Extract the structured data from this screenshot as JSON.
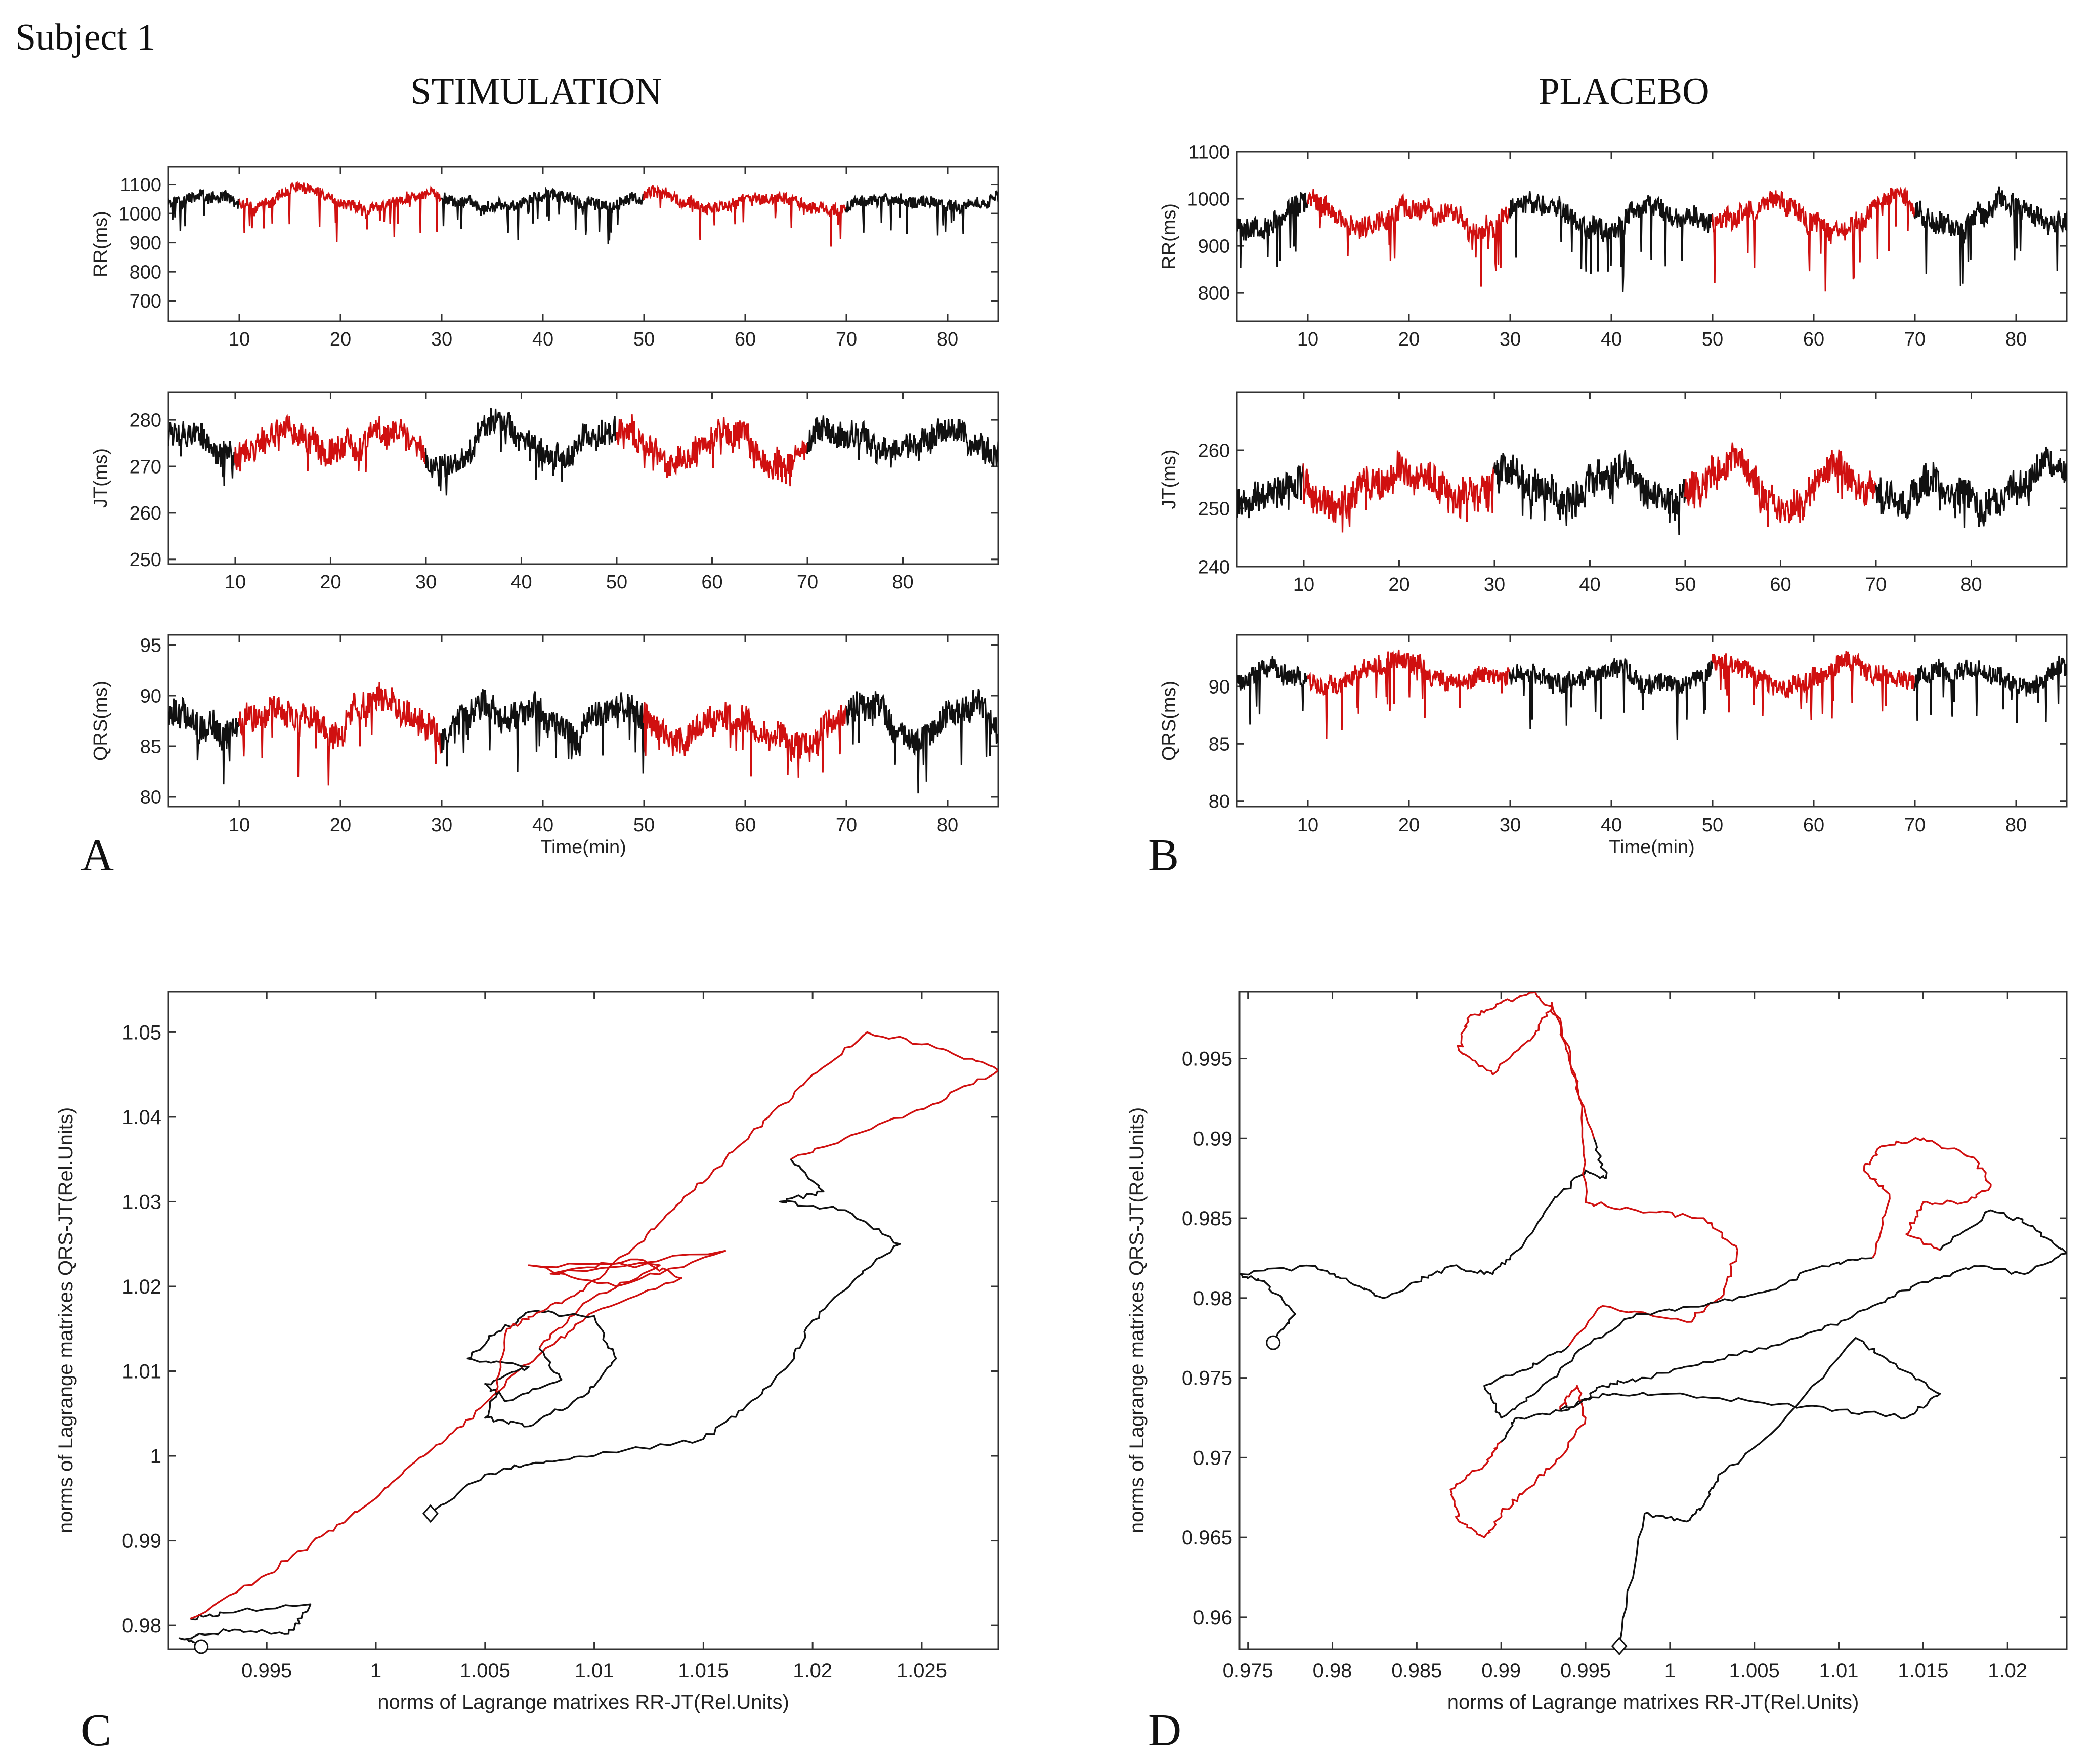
{
  "figure": {
    "subject": "Subject 1",
    "stimulation_title": "STIMULATION",
    "placebo_title": "PLACEBO",
    "panel_letters": [
      "A",
      "B",
      "C",
      "D"
    ]
  },
  "colors": {
    "red": "#d01010",
    "black": "#111111",
    "axis": "#333333",
    "text": "#222222"
  },
  "chart_data": [
    {
      "id": "A-RR",
      "panel": "A",
      "type": "line",
      "ylabel": "RR(ms)",
      "xlabel": "",
      "xlim": [
        3,
        85
      ],
      "ylim": [
        630,
        1160
      ],
      "xticks": [
        10,
        20,
        30,
        40,
        50,
        60,
        70,
        80
      ],
      "yticks": [
        700,
        800,
        900,
        1000,
        1100
      ],
      "series": {
        "base": 1040,
        "amp": 35,
        "dips": 110,
        "lo": 840,
        "hi": 1160,
        "seed": 11
      },
      "red_segments": [
        [
          10,
          30
        ],
        [
          50,
          70
        ]
      ]
    },
    {
      "id": "A-JT",
      "panel": "A",
      "type": "line",
      "ylabel": "JT(ms)",
      "xlabel": "",
      "xlim": [
        3,
        90
      ],
      "ylim": [
        249,
        286
      ],
      "xticks": [
        10,
        20,
        30,
        40,
        50,
        60,
        70,
        80
      ],
      "yticks": [
        250,
        260,
        270,
        280
      ],
      "series": {
        "base": 275,
        "amp": 5,
        "dips": 4,
        "lo": 263,
        "hi": 286,
        "seed": 12
      },
      "red_segments": [
        [
          10,
          30
        ],
        [
          50,
          70
        ]
      ]
    },
    {
      "id": "A-QRS",
      "panel": "A",
      "type": "line",
      "ylabel": "QRS(ms)",
      "xlabel": "Time(min)",
      "xlim": [
        3,
        85
      ],
      "ylim": [
        79,
        96
      ],
      "xticks": [
        10,
        20,
        30,
        40,
        50,
        60,
        70,
        80
      ],
      "yticks": [
        80,
        85,
        90,
        95
      ],
      "series": {
        "base": 87.5,
        "amp": 2.5,
        "dips": 4,
        "lo": 80,
        "hi": 94,
        "seed": 13
      },
      "red_segments": [
        [
          10,
          30
        ],
        [
          50,
          70
        ]
      ]
    },
    {
      "id": "B-RR",
      "panel": "B",
      "type": "line",
      "ylabel": "RR(ms)",
      "xlabel": "",
      "xlim": [
        3,
        85
      ],
      "ylim": [
        740,
        1100
      ],
      "xticks": [
        10,
        20,
        30,
        40,
        50,
        60,
        70,
        80
      ],
      "yticks": [
        800,
        900,
        1000,
        1100
      ],
      "series": {
        "base": 960,
        "amp": 40,
        "dips": 110,
        "lo": 750,
        "hi": 1100,
        "seed": 21
      },
      "red_segments": [
        [
          10,
          30
        ],
        [
          50,
          70
        ]
      ]
    },
    {
      "id": "B-JT",
      "panel": "B",
      "type": "line",
      "ylabel": "JT(ms)",
      "xlabel": "",
      "xlim": [
        3,
        90
      ],
      "ylim": [
        240,
        270
      ],
      "xticks": [
        10,
        20,
        30,
        40,
        50,
        60,
        70,
        80
      ],
      "yticks": [
        240,
        250,
        260
      ],
      "series": {
        "base": 254,
        "amp": 5,
        "dips": 4,
        "lo": 241,
        "hi": 269,
        "seed": 22
      },
      "red_segments": [
        [
          10,
          30
        ],
        [
          50,
          70
        ]
      ]
    },
    {
      "id": "B-QRS",
      "panel": "B",
      "type": "line",
      "ylabel": "QRS(ms)",
      "xlabel": "Time(min)",
      "xlim": [
        3,
        85
      ],
      "ylim": [
        79.5,
        94.5
      ],
      "xticks": [
        10,
        20,
        30,
        40,
        50,
        60,
        70,
        80
      ],
      "yticks": [
        80,
        85,
        90
      ],
      "series": {
        "base": 91,
        "amp": 1.5,
        "dips": 4,
        "lo": 81,
        "hi": 94,
        "seed": 23
      },
      "red_segments": [
        [
          10,
          30
        ],
        [
          50,
          70
        ]
      ]
    },
    {
      "id": "C",
      "panel": "C",
      "type": "line",
      "xlabel": "norms of  Lagrange matrixes RR-JT(Rel.Units)",
      "ylabel": "norms of Lagrange matrixes QRS-JT(Rel.Units)",
      "xlim": [
        0.9905,
        1.0285
      ],
      "ylim": [
        0.9772,
        1.0548
      ],
      "xticks": [
        0.995,
        1,
        1.005,
        1.01,
        1.015,
        1.02,
        1.025
      ],
      "yticks": [
        0.98,
        0.99,
        1,
        1.01,
        1.02,
        1.03,
        1.04,
        1.05
      ],
      "xtick_labels": [
        "0.995",
        "1",
        "1.005",
        "1.01",
        "1.015",
        "1.02",
        "1.025"
      ],
      "ytick_labels": [
        "0.98",
        "0.99",
        "1",
        "1.01",
        "1.02",
        "1.03",
        "1.04",
        "1.05"
      ],
      "start_marker": "circle",
      "end_marker": "diamond",
      "trajectory": [
        {
          "color": "black",
          "points": [
            [
              0.992,
              0.9775
            ],
            [
              0.991,
              0.9785
            ],
            [
              0.9935,
              0.9795
            ],
            [
              0.996,
              0.979
            ],
            [
              0.997,
              0.9825
            ],
            [
              0.993,
              0.9815
            ],
            [
              0.9915,
              0.9808
            ]
          ]
        },
        {
          "color": "red",
          "points": [
            [
              0.9915,
              0.9808
            ],
            [
              0.995,
              0.986
            ],
            [
              0.9975,
              0.9905
            ],
            [
              1.0,
              0.995
            ],
            [
              1.002,
              0.9998
            ],
            [
              1.004,
              1.0035
            ],
            [
              1.006,
              1.009
            ],
            [
              1.008,
              1.013
            ],
            [
              1.01,
              1.017
            ],
            [
              1.014,
              1.021
            ],
            [
              1.012,
              1.0232
            ],
            [
              1.008,
              1.0215
            ],
            [
              1.016,
              1.0242
            ],
            [
              1.011,
              1.02
            ],
            [
              1.007,
              1.0225
            ],
            [
              1.013,
              1.0225
            ],
            [
              1.0095,
              1.018
            ],
            [
              1.0075,
              1.0128
            ]
          ]
        },
        {
          "color": "black",
          "points": [
            [
              1.0075,
              1.0128
            ],
            [
              1.0085,
              1.009
            ],
            [
              1.006,
              1.0065
            ],
            [
              1.005,
              1.0085
            ],
            [
              1.007,
              1.0105
            ],
            [
              1.0042,
              1.0115
            ],
            [
              1.0055,
              1.0145
            ],
            [
              1.007,
              1.017
            ],
            [
              1.01,
              1.0165
            ],
            [
              1.011,
              1.0115
            ],
            [
              1.0095,
              1.007
            ],
            [
              1.007,
              1.0035
            ],
            [
              1.005,
              1.0045
            ],
            [
              1.0055,
              1.0075
            ]
          ]
        },
        {
          "color": "red",
          "points": [
            [
              1.0055,
              1.0075
            ],
            [
              1.006,
              1.015
            ],
            [
              1.0075,
              1.017
            ],
            [
              1.0095,
              1.0195
            ],
            [
              1.012,
              1.025
            ],
            [
              1.014,
              1.03
            ],
            [
              1.016,
              1.035
            ],
            [
              1.018,
              1.04
            ],
            [
              1.02,
              1.045
            ],
            [
              1.0225,
              1.05
            ],
            [
              1.026,
              1.048
            ],
            [
              1.0285,
              1.0455
            ],
            [
              1.0255,
              1.0415
            ],
            [
              1.022,
              1.038
            ],
            [
              1.019,
              1.035
            ]
          ]
        },
        {
          "color": "black",
          "points": [
            [
              1.019,
              1.035
            ],
            [
              1.0205,
              1.0312
            ],
            [
              1.0185,
              1.03
            ],
            [
              1.0215,
              1.029
            ],
            [
              1.024,
              1.025
            ],
            [
              1.022,
              1.021
            ],
            [
              1.02,
              1.016
            ],
            [
              1.019,
              1.011
            ],
            [
              1.017,
              1.006
            ],
            [
              1.015,
              1.002
            ],
            [
              1.01,
              1.0
            ],
            [
              1.007,
              0.999
            ],
            [
              1.005,
              0.9978
            ],
            [
              1.0025,
              0.9932
            ]
          ]
        }
      ]
    },
    {
      "id": "D",
      "panel": "D",
      "type": "line",
      "xlabel": "norms of  Lagrange matrixes RR-JT(Rel.Units)",
      "ylabel": "norms of Lagrange matrixes QRS-JT(Rel.Units)",
      "xlim": [
        0.9745,
        1.0235
      ],
      "ylim": [
        0.958,
        0.9992
      ],
      "xticks": [
        0.975,
        0.98,
        0.985,
        0.99,
        0.995,
        1,
        1.005,
        1.01,
        1.015,
        1.02
      ],
      "yticks": [
        0.96,
        0.965,
        0.97,
        0.975,
        0.98,
        0.985,
        0.99,
        0.995
      ],
      "xtick_labels": [
        "0.975",
        "0.98",
        "0.985",
        "0.99",
        "0.995",
        "1",
        "1.005",
        "1.01",
        "1.015",
        "1.02"
      ],
      "ytick_labels": [
        "0.96",
        "0.965",
        "0.97",
        "0.975",
        "0.98",
        "0.985",
        "0.99",
        "0.995"
      ],
      "start_marker": "circle",
      "end_marker": "diamond",
      "trajectory": [
        {
          "color": "black",
          "points": [
            [
              0.9765,
              0.9772
            ],
            [
              0.9778,
              0.979
            ],
            [
              0.976,
              0.981
            ],
            [
              0.9745,
              0.9815
            ],
            [
              0.979,
              0.982
            ],
            [
              0.981,
              0.981
            ],
            [
              0.983,
              0.98
            ],
            [
              0.985,
              0.981
            ],
            [
              0.987,
              0.982
            ],
            [
              0.9895,
              0.9815
            ],
            [
              0.991,
              0.983
            ],
            [
              0.993,
              0.986
            ],
            [
              0.995,
              0.988
            ],
            [
              0.9962,
              0.9875
            ],
            [
              0.9955,
              0.99
            ]
          ]
        },
        {
          "color": "red",
          "points": [
            [
              0.9955,
              0.99
            ],
            [
              0.994,
              0.995
            ],
            [
              0.993,
              0.9985
            ],
            [
              0.992,
              0.9965
            ],
            [
              0.9895,
              0.994
            ],
            [
              0.9875,
              0.9955
            ],
            [
              0.988,
              0.9975
            ],
            [
              0.99,
              0.9985
            ],
            [
              0.992,
              0.9992
            ],
            [
              0.9935,
              0.9975
            ],
            [
              0.9948,
              0.992
            ],
            [
              0.995,
              0.986
            ],
            [
              0.998,
              0.9855
            ],
            [
              1.002,
              0.985
            ],
            [
              1.004,
              0.983
            ],
            [
              1.003,
              0.98
            ],
            [
              1.001,
              0.9785
            ],
            [
              0.996,
              0.9795
            ],
            [
              0.994,
              0.977
            ]
          ]
        },
        {
          "color": "black",
          "points": [
            [
              0.994,
              0.977
            ],
            [
              0.9915,
              0.9755
            ],
            [
              0.989,
              0.9745
            ],
            [
              0.99,
              0.9725
            ],
            [
              0.992,
              0.974
            ],
            [
              0.995,
              0.977
            ],
            [
              0.998,
              0.979
            ],
            [
              1.002,
              0.9795
            ],
            [
              1.006,
              0.9805
            ],
            [
              1.009,
              0.982
            ],
            [
              1.012,
              0.9825
            ]
          ]
        },
        {
          "color": "red",
          "points": [
            [
              1.012,
              0.9825
            ],
            [
              1.013,
              0.9865
            ],
            [
              1.0115,
              0.988
            ],
            [
              1.0125,
              0.9895
            ],
            [
              1.015,
              0.99
            ],
            [
              1.018,
              0.9888
            ],
            [
              1.019,
              0.987
            ],
            [
              1.0175,
              0.986
            ],
            [
              1.015,
              0.986
            ],
            [
              1.014,
              0.984
            ],
            [
              1.016,
              0.983
            ]
          ]
        },
        {
          "color": "black",
          "points": [
            [
              1.016,
              0.983
            ],
            [
              1.019,
              0.9855
            ],
            [
              1.0215,
              0.9845
            ],
            [
              1.0235,
              0.9828
            ],
            [
              1.021,
              0.9815
            ],
            [
              1.018,
              0.982
            ],
            [
              1.015,
              0.981
            ],
            [
              1.012,
              0.9795
            ],
            [
              1.009,
              0.978
            ],
            [
              1.006,
              0.977
            ],
            [
              1.002,
              0.976
            ],
            [
              0.9985,
              0.975
            ],
            [
              0.996,
              0.9745
            ],
            [
              0.994,
              0.973
            ],
            [
              0.991,
              0.9725
            ],
            [
              0.99,
              0.971
            ]
          ]
        },
        {
          "color": "red",
          "points": [
            [
              0.99,
              0.971
            ],
            [
              0.989,
              0.9695
            ],
            [
              0.987,
              0.968
            ],
            [
              0.9875,
              0.966
            ],
            [
              0.989,
              0.965
            ],
            [
              0.99,
              0.9665
            ],
            [
              0.9915,
              0.968
            ],
            [
              0.9935,
              0.97
            ],
            [
              0.995,
              0.9725
            ],
            [
              0.9945,
              0.9745
            ],
            [
              0.9935,
              0.973
            ]
          ]
        },
        {
          "color": "black",
          "points": [
            [
              0.9935,
              0.973
            ],
            [
              0.996,
              0.974
            ],
            [
              1.0,
              0.974
            ],
            [
              1.005,
              0.9735
            ],
            [
              1.01,
              0.973
            ],
            [
              1.014,
              0.9725
            ],
            [
              1.016,
              0.974
            ],
            [
              1.013,
              0.976
            ],
            [
              1.011,
              0.9775
            ],
            [
              1.006,
              0.9715
            ],
            [
              1.003,
              0.969
            ],
            [
              1.002,
              0.967
            ],
            [
              1.001,
              0.966
            ],
            [
              0.9985,
              0.9665
            ],
            [
              0.997,
              0.9582
            ]
          ]
        }
      ]
    }
  ]
}
